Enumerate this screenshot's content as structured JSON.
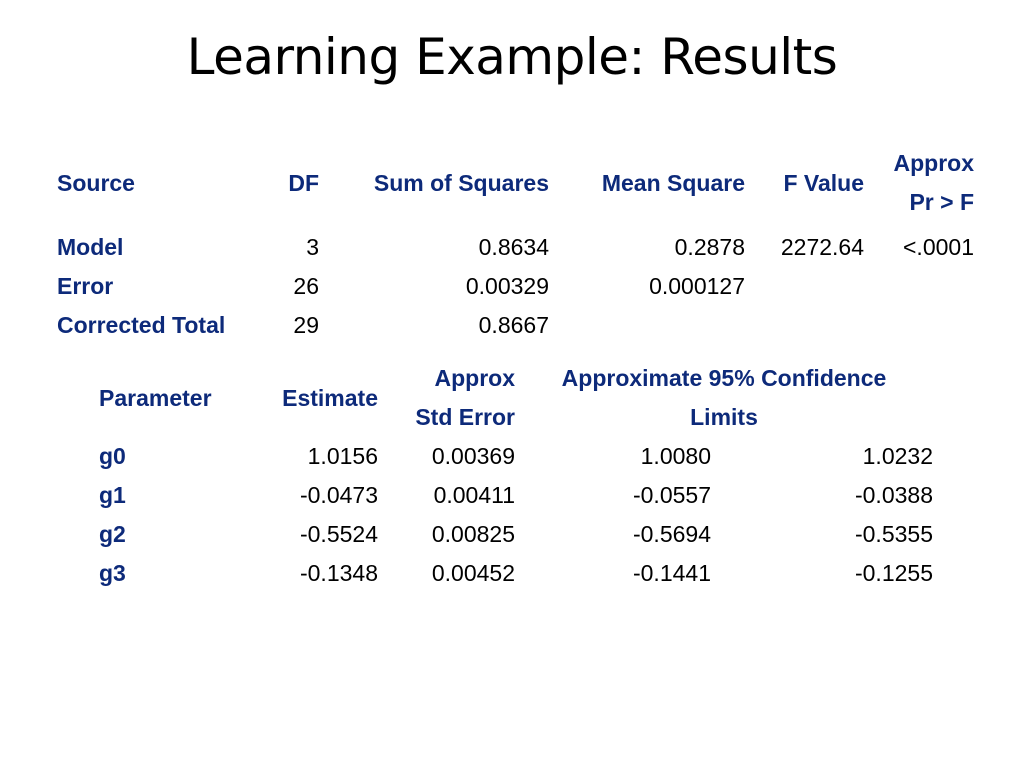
{
  "slide": {
    "title": "Learning Example: Results"
  },
  "anova": {
    "headers": {
      "source": "Source",
      "df": "DF",
      "ss": "Sum of Squares",
      "ms": "Mean Square",
      "f": "F Value",
      "p_line1": "Approx",
      "p_line2": "Pr > F"
    },
    "rows": [
      {
        "source": "Model",
        "df": "3",
        "ss": "0.8634",
        "ms": "0.2878",
        "f": "2272.64",
        "p": "<.0001"
      },
      {
        "source": "Error",
        "df": "26",
        "ss": "0.00329",
        "ms": "0.000127",
        "f": "",
        "p": ""
      },
      {
        "source": "Corrected Total",
        "df": "29",
        "ss": "0.8667",
        "ms": "",
        "f": "",
        "p": ""
      }
    ]
  },
  "params": {
    "headers": {
      "parameter": "Parameter",
      "estimate": "Estimate",
      "se_line1": "Approx",
      "se_line2": "Std Error",
      "ci_line1": "Approximate 95% Confidence",
      "ci_line2": "Limits"
    },
    "rows": [
      {
        "parameter": "g0",
        "estimate": "1.0156",
        "se": "0.00369",
        "lower": "1.0080",
        "upper": "1.0232"
      },
      {
        "parameter": "g1",
        "estimate": "-0.0473",
        "se": "0.00411",
        "lower": "-0.0557",
        "upper": "-0.0388"
      },
      {
        "parameter": "g2",
        "estimate": "-0.5524",
        "se": "0.00825",
        "lower": "-0.5694",
        "upper": "-0.5355"
      },
      {
        "parameter": "g3",
        "estimate": "-0.1348",
        "se": "0.00452",
        "lower": "-0.1441",
        "upper": "-0.1255"
      }
    ]
  }
}
